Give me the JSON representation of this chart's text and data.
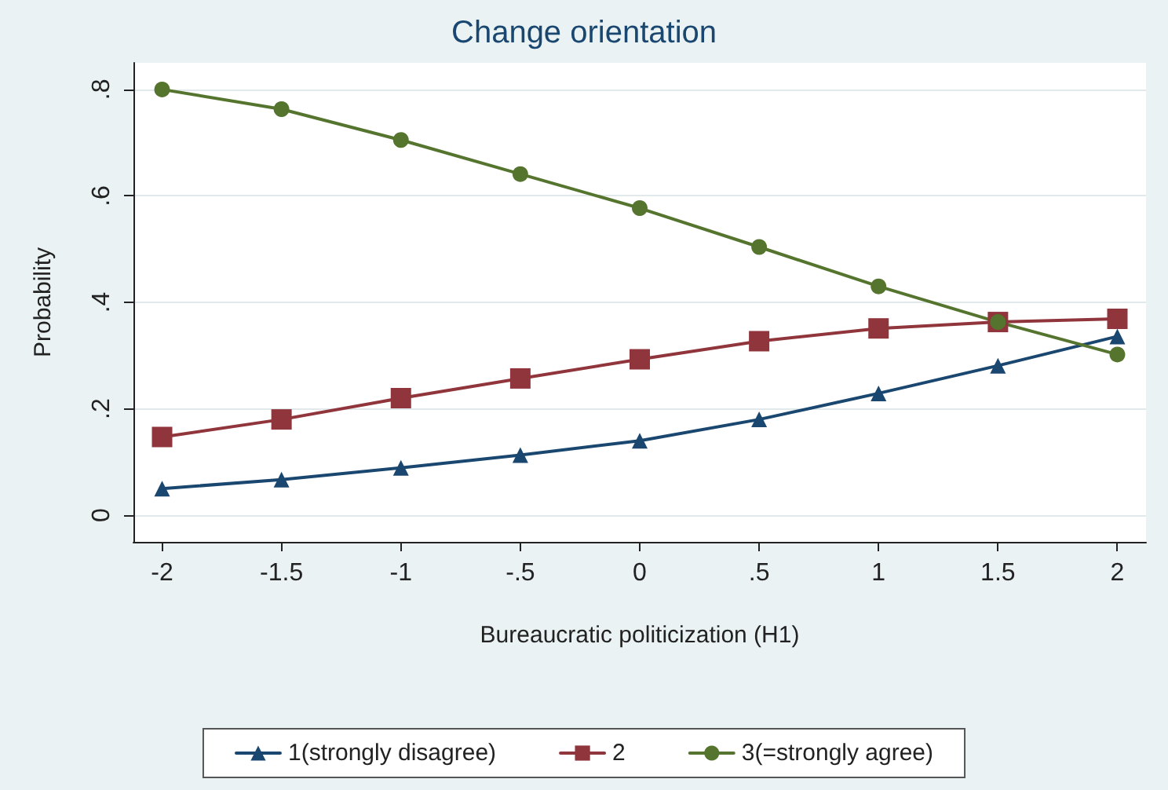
{
  "chart_data": {
    "type": "line",
    "title": "Change orientation",
    "xlabel": "Bureaucratic politicization (H1)",
    "ylabel": "Probability",
    "x": [
      -2,
      -1.5,
      -1,
      -0.5,
      0,
      0.5,
      1,
      1.5,
      2
    ],
    "series": [
      {
        "name": "1(strongly disagree)",
        "color": "#1a476f",
        "marker": "triangle",
        "values": [
          0.05,
          0.067,
          0.089,
          0.113,
          0.14,
          0.18,
          0.229,
          0.281,
          0.336
        ]
      },
      {
        "name": "2",
        "color": "#90353b",
        "marker": "square",
        "values": [
          0.147,
          0.18,
          0.22,
          0.257,
          0.293,
          0.327,
          0.351,
          0.363,
          0.369
        ]
      },
      {
        "name": "3(=strongly agree)",
        "color": "#55752f",
        "marker": "circle",
        "values": [
          0.8,
          0.763,
          0.705,
          0.641,
          0.577,
          0.504,
          0.43,
          0.363,
          0.302
        ]
      }
    ],
    "xlim": [
      -2.12,
      2.12
    ],
    "xticks": [
      -2,
      -1.5,
      -1,
      {
        "value": -0.5,
        "label": "-.5"
      },
      0,
      {
        "value": 0.5,
        "label": ".5"
      },
      1,
      1.5,
      2
    ],
    "ylim": [
      -0.05,
      0.85
    ],
    "yticks": [
      0,
      {
        "value": 0.2,
        "label": ".2"
      },
      {
        "value": 0.4,
        "label": ".4"
      },
      {
        "value": 0.6,
        "label": ".6"
      },
      {
        "value": 0.8,
        "label": ".8"
      }
    ],
    "grid": "y",
    "legend": "bottom",
    "line_style": "solid"
  }
}
